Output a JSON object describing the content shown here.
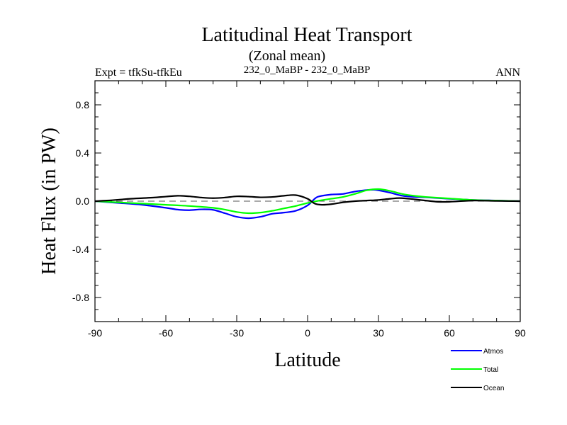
{
  "chart_data": {
    "type": "line",
    "title": "Latitudinal Heat Transport",
    "subtitle": "(Zonal mean)",
    "left_label": "Expt = tfkSu-tfkEu",
    "center_label": "232_0_MaBP - 232_0_MaBP",
    "right_label": "ANN",
    "xlabel": "Latitude",
    "ylabel": "Heat Flux (in PW)",
    "xlim": [
      -90,
      90
    ],
    "ylim": [
      -1.0,
      1.0
    ],
    "xticks": [
      -90,
      -60,
      -30,
      0,
      30,
      60,
      90
    ],
    "xtick_labels": [
      "-90",
      "-60",
      "-30",
      "0",
      "30",
      "60",
      "90"
    ],
    "yticks": [
      -0.8,
      -0.4,
      0.0,
      0.4,
      0.8
    ],
    "ytick_labels": [
      "-0.8",
      "-0.4",
      "0.0",
      "0.4",
      "0.8"
    ],
    "zero_line": true,
    "legend_position": "bottom-right",
    "series": [
      {
        "name": "Atmos",
        "color": "#0000ff",
        "x": [
          -90,
          -80,
          -70,
          -60,
          -55,
          -50,
          -45,
          -40,
          -35,
          -30,
          -25,
          -20,
          -15,
          -10,
          -5,
          0,
          3,
          5,
          10,
          15,
          20,
          25,
          28,
          30,
          35,
          40,
          45,
          50,
          60,
          70,
          80,
          90
        ],
        "y": [
          0.0,
          -0.015,
          -0.03,
          -0.055,
          -0.07,
          -0.075,
          -0.068,
          -0.072,
          -0.1,
          -0.13,
          -0.142,
          -0.13,
          -0.105,
          -0.095,
          -0.08,
          -0.035,
          0.02,
          0.04,
          0.055,
          0.06,
          0.08,
          0.092,
          0.095,
          0.09,
          0.07,
          0.045,
          0.035,
          0.032,
          0.02,
          0.01,
          0.005,
          0.0
        ]
      },
      {
        "name": "Total",
        "color": "#00ff00",
        "x": [
          -90,
          -80,
          -70,
          -60,
          -50,
          -40,
          -35,
          -30,
          -25,
          -20,
          -15,
          -10,
          -5,
          0,
          5,
          10,
          15,
          20,
          25,
          30,
          35,
          40,
          45,
          50,
          60,
          70,
          80,
          90
        ],
        "y": [
          0.0,
          -0.01,
          -0.02,
          -0.03,
          -0.04,
          -0.055,
          -0.07,
          -0.09,
          -0.1,
          -0.095,
          -0.08,
          -0.06,
          -0.04,
          -0.015,
          0.005,
          0.02,
          0.035,
          0.06,
          0.09,
          0.1,
          0.085,
          0.06,
          0.045,
          0.035,
          0.022,
          0.01,
          0.005,
          0.0
        ]
      },
      {
        "name": "Ocean",
        "color": "#000000",
        "x": [
          -90,
          -85,
          -80,
          -75,
          -70,
          -65,
          -60,
          -55,
          -50,
          -45,
          -40,
          -35,
          -30,
          -25,
          -20,
          -15,
          -10,
          -5,
          0,
          3,
          6,
          10,
          15,
          20,
          25,
          30,
          35,
          40,
          50,
          55,
          60,
          70,
          80,
          90
        ],
        "y": [
          0.0,
          0.005,
          0.012,
          0.02,
          0.025,
          0.03,
          0.038,
          0.045,
          0.04,
          0.03,
          0.025,
          0.03,
          0.04,
          0.038,
          0.032,
          0.035,
          0.045,
          0.05,
          0.02,
          -0.02,
          -0.03,
          -0.025,
          -0.01,
          0.0,
          0.005,
          0.01,
          0.02,
          0.025,
          0.005,
          -0.005,
          -0.005,
          0.005,
          0.002,
          0.0
        ]
      }
    ]
  }
}
